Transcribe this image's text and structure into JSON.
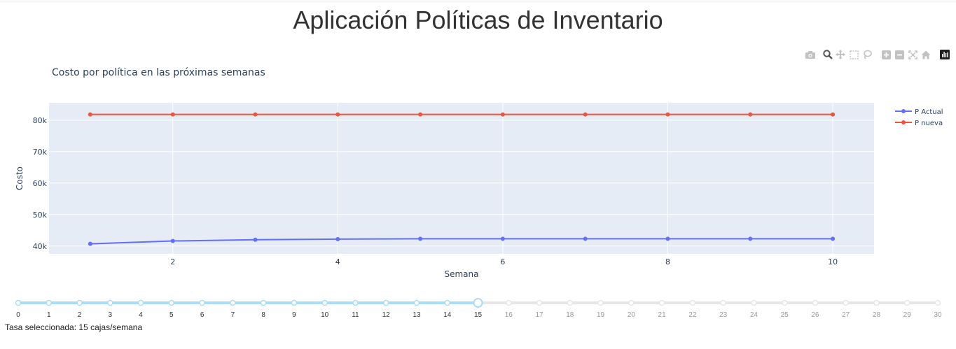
{
  "page": {
    "title": "Aplicación Políticas de Inventario"
  },
  "modebar": {
    "icons": [
      "camera-icon",
      "zoom-icon",
      "pan-icon",
      "box-select-icon",
      "lasso-icon",
      "zoom-in-icon",
      "zoom-out-icon",
      "autoscale-icon",
      "reset-axes-icon",
      "plotly-logo-icon"
    ]
  },
  "chart_data": {
    "type": "line",
    "title": "Costo por política en las próximas semanas",
    "xlabel": "Semana",
    "ylabel": "Costo",
    "x": [
      1,
      2,
      3,
      4,
      5,
      6,
      7,
      8,
      9,
      10
    ],
    "xlim": [
      0.5,
      10.5
    ],
    "ylim": [
      37500,
      85500
    ],
    "xticks": [
      2,
      4,
      6,
      8,
      10
    ],
    "yticks": [
      40000,
      50000,
      60000,
      70000,
      80000
    ],
    "ytick_labels": [
      "40k",
      "50k",
      "60k",
      "70k",
      "80k"
    ],
    "grid": true,
    "legend_position": "top-right",
    "series": [
      {
        "name": "P Actual",
        "color": "#636efa",
        "values": [
          40700,
          41600,
          42000,
          42200,
          42300,
          42300,
          42300,
          42300,
          42300,
          42300
        ]
      },
      {
        "name": "P nueva",
        "color": "#ef553b",
        "values": [
          81800,
          81800,
          81800,
          81800,
          81800,
          81800,
          81800,
          81800,
          81800,
          81800
        ]
      }
    ]
  },
  "slider": {
    "min": 0,
    "max": 30,
    "value": 15,
    "ticks": [
      "0",
      "1",
      "2",
      "3",
      "4",
      "5",
      "6",
      "7",
      "8",
      "9",
      "10",
      "11",
      "12",
      "13",
      "14",
      "15",
      "16",
      "17",
      "18",
      "19",
      "20",
      "21",
      "22",
      "23",
      "24",
      "25",
      "26",
      "27",
      "28",
      "29",
      "30"
    ],
    "active_color": "#a9dcf7",
    "inactive_color": "#e6e6e6"
  },
  "status": {
    "text": "Tasa seleccionada: 15 cajas/semana"
  }
}
